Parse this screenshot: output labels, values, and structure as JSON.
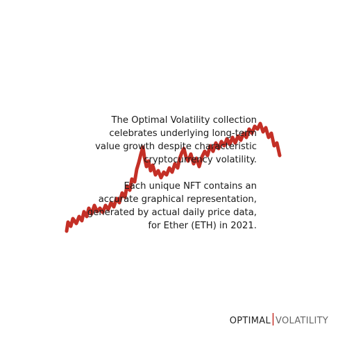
{
  "description": {
    "paragraphs": [
      [
        "The Optimal Volatility collection",
        "celebrates underlying long-term",
        "value growth despite characteristic",
        "cryptocurrency volatility."
      ],
      [
        "Each unique NFT contains an",
        "accurate graphical representation,",
        "generated by actual daily price data,",
        "for Ether (ETH) in 2021."
      ]
    ]
  },
  "logo": {
    "left": "OPTIMAL",
    "right": "VOLATILITY"
  }
}
